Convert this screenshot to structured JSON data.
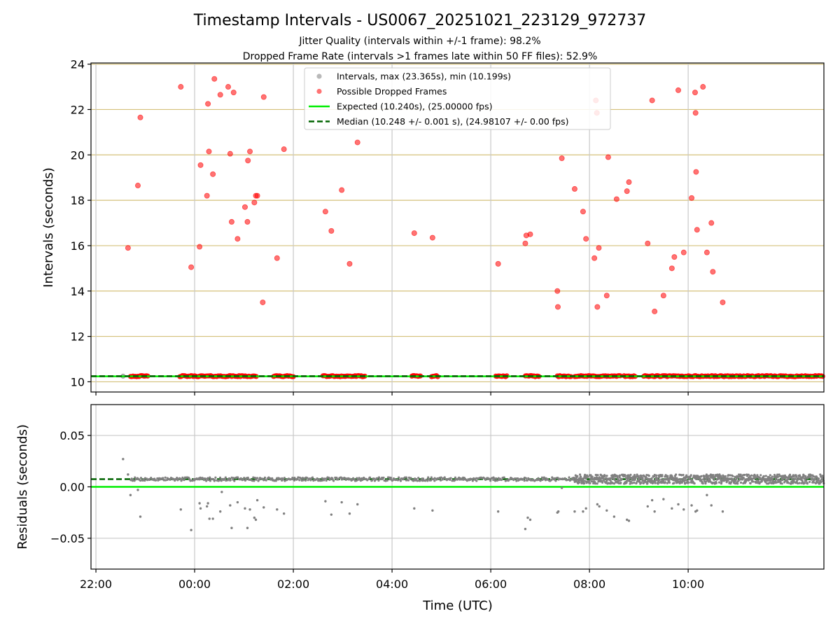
{
  "figure": {
    "title": "Timestamp Intervals - US0067_20251021_223129_972737",
    "subtitle_1": "Jitter Quality (intervals within +/-1 frame): 98.2%",
    "subtitle_2": "Dropped Frame Rate (intervals >1 frames late within 50 FF files): 52.9%",
    "xlabel": "Time (UTC)",
    "colors": {
      "dropped": "#ff0000",
      "intervals": "#808080",
      "expected": "#00ee00",
      "median": "#006400",
      "hgrid": "#d4c07a",
      "vgrid": "#c8c8c8"
    }
  },
  "chart_data": [
    {
      "type": "scatter",
      "ylabel": "Intervals (seconds)",
      "ylim": [
        9.55,
        24.05
      ],
      "yticks": [
        10,
        12,
        14,
        16,
        18,
        20,
        22,
        24
      ],
      "xlim_hours": [
        -2.1,
        12.75
      ],
      "x_ticks": [
        {
          "hour": -2,
          "label": "22:00"
        },
        {
          "hour": 0,
          "label": "00:00"
        },
        {
          "hour": 2,
          "label": "02:00"
        },
        {
          "hour": 4,
          "label": "04:00"
        },
        {
          "hour": 6,
          "label": "06:00"
        },
        {
          "hour": 8,
          "label": "08:00"
        },
        {
          "hour": 10,
          "label": "10:00"
        }
      ],
      "grid": "horizontal lines at y ticks, vertical lines at x ticks",
      "legend_position": "top-center",
      "legend": [
        {
          "label": "Intervals, max (23.365s), min (10.199s)",
          "marker": "gray-dot"
        },
        {
          "label": "Possible Dropped Frames",
          "marker": "red-dot"
        },
        {
          "label": "Expected (10.240s), (25.00000 fps)",
          "marker": "green-line"
        },
        {
          "label": "Median (10.248 +/- 0.001 s), (24.98107 +/- 0.00 fps)",
          "marker": "dark-green-dashed"
        }
      ],
      "expected_interval": 10.24,
      "median_interval": 10.248,
      "baseline_segments_hours": [
        [
          -1.3,
          -0.95
        ],
        [
          -0.3,
          1.25
        ],
        [
          1.6,
          2.0
        ],
        [
          2.6,
          3.45
        ],
        [
          4.4,
          4.6
        ],
        [
          4.8,
          4.95
        ],
        [
          6.1,
          6.35
        ],
        [
          6.7,
          7.0
        ],
        [
          7.35,
          7.65
        ],
        [
          7.7,
          8.65
        ],
        [
          8.7,
          8.95
        ],
        [
          9.1,
          12.75
        ]
      ],
      "series": [
        {
          "name": "Possible Dropped Frames",
          "points": [
            [
              -1.35,
              15.9
            ],
            [
              -1.15,
              18.65
            ],
            [
              -1.1,
              21.65
            ],
            [
              -0.28,
              23.0
            ],
            [
              -0.07,
              15.05
            ],
            [
              0.1,
              15.95
            ],
            [
              0.12,
              19.55
            ],
            [
              0.25,
              18.2
            ],
            [
              0.27,
              22.25
            ],
            [
              0.29,
              20.15
            ],
            [
              0.37,
              19.15
            ],
            [
              0.4,
              23.35
            ],
            [
              0.52,
              22.65
            ],
            [
              0.68,
              23.0
            ],
            [
              0.72,
              20.05
            ],
            [
              0.75,
              17.05
            ],
            [
              0.79,
              22.75
            ],
            [
              0.87,
              16.3
            ],
            [
              1.02,
              17.7
            ],
            [
              1.07,
              17.05
            ],
            [
              1.08,
              19.75
            ],
            [
              1.12,
              20.15
            ],
            [
              1.21,
              17.9
            ],
            [
              1.24,
              18.2
            ],
            [
              1.27,
              18.2
            ],
            [
              1.38,
              13.5
            ],
            [
              1.4,
              22.55
            ],
            [
              1.67,
              15.45
            ],
            [
              1.81,
              20.25
            ],
            [
              2.65,
              17.5
            ],
            [
              2.77,
              16.65
            ],
            [
              2.98,
              18.45
            ],
            [
              3.14,
              15.2
            ],
            [
              3.3,
              20.55
            ],
            [
              4.45,
              16.55
            ],
            [
              4.82,
              16.35
            ],
            [
              6.15,
              15.2
            ],
            [
              6.7,
              16.1
            ],
            [
              6.72,
              16.45
            ],
            [
              6.8,
              16.5
            ],
            [
              7.35,
              14.0
            ],
            [
              7.36,
              13.3
            ],
            [
              7.44,
              19.85
            ],
            [
              7.7,
              18.5
            ],
            [
              7.87,
              17.5
            ],
            [
              7.93,
              16.3
            ],
            [
              8.1,
              15.45
            ],
            [
              8.13,
              22.4
            ],
            [
              8.15,
              21.85
            ],
            [
              8.16,
              13.3
            ],
            [
              8.19,
              15.9
            ],
            [
              8.35,
              13.8
            ],
            [
              8.38,
              19.9
            ],
            [
              8.55,
              18.05
            ],
            [
              8.76,
              18.4
            ],
            [
              8.8,
              18.8
            ],
            [
              9.18,
              16.1
            ],
            [
              9.27,
              22.4
            ],
            [
              9.32,
              13.1
            ],
            [
              9.5,
              13.8
            ],
            [
              9.67,
              15.0
            ],
            [
              9.72,
              15.5
            ],
            [
              9.8,
              22.85
            ],
            [
              9.91,
              15.7
            ],
            [
              10.07,
              18.1
            ],
            [
              10.14,
              22.75
            ],
            [
              10.15,
              21.85
            ],
            [
              10.16,
              19.25
            ],
            [
              10.18,
              16.7
            ],
            [
              10.3,
              23.0
            ],
            [
              10.38,
              15.7
            ],
            [
              10.47,
              17.0
            ],
            [
              10.5,
              14.85
            ],
            [
              10.7,
              13.5
            ]
          ]
        }
      ]
    },
    {
      "type": "scatter",
      "ylabel": "Residuals (seconds)",
      "ylim": [
        -0.08,
        0.08
      ],
      "yticks": [
        {
          "value": 0.05,
          "label": "0.05"
        },
        {
          "value": 0.0,
          "label": "0.00"
        },
        {
          "value": -0.05,
          "label": "−0.05"
        }
      ],
      "xlim_hours": [
        -2.1,
        12.75
      ],
      "expected_residual": 0.0,
      "median_residual": 0.0075,
      "cluster_level": 0.0075,
      "cluster_ranges_hours": [
        [
          -1.3,
          7.7
        ],
        [
          7.7,
          12.75
        ]
      ],
      "points": [
        [
          -1.45,
          0.027
        ],
        [
          -1.35,
          0.012
        ],
        [
          -1.3,
          -0.008
        ],
        [
          -1.15,
          -0.003
        ],
        [
          -1.1,
          -0.029
        ],
        [
          -0.28,
          -0.022
        ],
        [
          -0.07,
          -0.042
        ],
        [
          0.1,
          -0.016
        ],
        [
          0.12,
          -0.021
        ],
        [
          0.25,
          -0.019
        ],
        [
          0.27,
          -0.016
        ],
        [
          0.3,
          -0.031
        ],
        [
          0.37,
          -0.031
        ],
        [
          0.52,
          -0.024
        ],
        [
          0.55,
          -0.005
        ],
        [
          0.72,
          -0.018
        ],
        [
          0.75,
          -0.04
        ],
        [
          0.87,
          -0.015
        ],
        [
          1.02,
          -0.021
        ],
        [
          1.07,
          -0.04
        ],
        [
          1.12,
          -0.022
        ],
        [
          1.21,
          -0.03
        ],
        [
          1.24,
          -0.032
        ],
        [
          1.27,
          -0.013
        ],
        [
          1.4,
          -0.02
        ],
        [
          1.67,
          -0.022
        ],
        [
          1.81,
          -0.026
        ],
        [
          2.65,
          -0.014
        ],
        [
          2.77,
          -0.027
        ],
        [
          2.98,
          -0.015
        ],
        [
          3.14,
          -0.026
        ],
        [
          3.3,
          -0.017
        ],
        [
          4.45,
          -0.021
        ],
        [
          4.82,
          -0.023
        ],
        [
          6.15,
          -0.024
        ],
        [
          6.7,
          -0.041
        ],
        [
          6.75,
          -0.03
        ],
        [
          6.8,
          -0.032
        ],
        [
          7.35,
          -0.025
        ],
        [
          7.37,
          -0.024
        ],
        [
          7.44,
          -0.001
        ],
        [
          7.7,
          -0.024
        ],
        [
          7.87,
          -0.024
        ],
        [
          7.93,
          -0.021
        ],
        [
          8.16,
          -0.017
        ],
        [
          8.2,
          -0.019
        ],
        [
          8.35,
          -0.023
        ],
        [
          8.5,
          -0.029
        ],
        [
          8.76,
          -0.032
        ],
        [
          8.8,
          -0.033
        ],
        [
          9.18,
          -0.019
        ],
        [
          9.27,
          -0.013
        ],
        [
          9.32,
          -0.024
        ],
        [
          9.5,
          -0.012
        ],
        [
          9.67,
          -0.021
        ],
        [
          9.8,
          -0.017
        ],
        [
          9.91,
          -0.022
        ],
        [
          10.07,
          -0.018
        ],
        [
          10.15,
          -0.024
        ],
        [
          10.18,
          -0.023
        ],
        [
          10.38,
          -0.008
        ],
        [
          10.47,
          -0.018
        ],
        [
          10.7,
          -0.024
        ]
      ]
    }
  ]
}
